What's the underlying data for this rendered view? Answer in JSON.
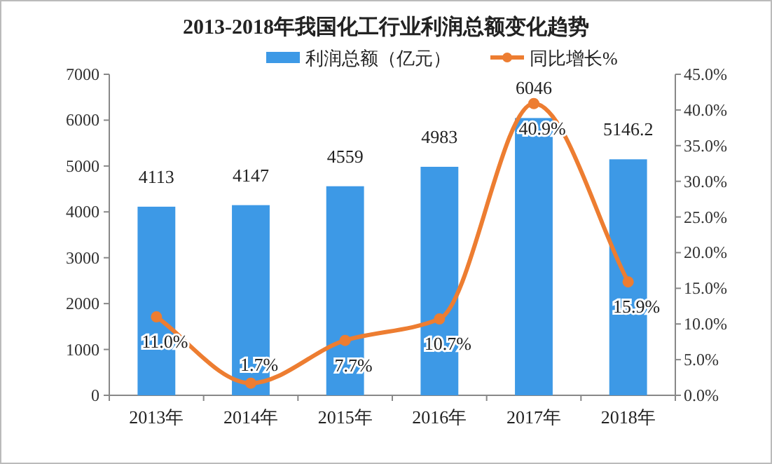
{
  "chart_data": {
    "type": "bar",
    "title": "2013-2018年我国化工行业利润总额变化趋势",
    "categories": [
      "2013年",
      "2014年",
      "2015年",
      "2016年",
      "2017年",
      "2018年"
    ],
    "series": [
      {
        "name": "利润总额（亿元）",
        "color": "#3d99e6",
        "values": [
          4113,
          4147,
          4559,
          4983,
          6046,
          5146.2
        ],
        "value_labels": [
          "4113",
          "4147",
          "4559",
          "4983",
          "6046",
          "5146.2"
        ]
      },
      {
        "name": "同比增长%",
        "type": "line",
        "axis": "y2",
        "color": "#ed7d31",
        "marker": "circle",
        "values": [
          11.0,
          1.7,
          7.7,
          10.7,
          40.9,
          15.9
        ],
        "value_labels": [
          "11.0%",
          "1.7%",
          "7.7%",
          "10.7%",
          "40.9%",
          "15.9%"
        ]
      }
    ],
    "ylim": [
      0,
      7000
    ],
    "yticks": [
      0,
      1000,
      2000,
      3000,
      4000,
      5000,
      6000,
      7000
    ],
    "y2lim": [
      0,
      45
    ],
    "y2ticks": [
      {
        "value": 0,
        "label": "0.0%"
      },
      {
        "value": 5,
        "label": "5.0%"
      },
      {
        "value": 10,
        "label": "10.0%"
      },
      {
        "value": 15,
        "label": "15.0%"
      },
      {
        "value": 20,
        "label": "20.0%"
      },
      {
        "value": 25,
        "label": "25.0%"
      },
      {
        "value": 30,
        "label": "30.0%"
      },
      {
        "value": 35,
        "label": "35.0%"
      },
      {
        "value": 40,
        "label": "40.0%"
      },
      {
        "value": 45,
        "label": "45.0%"
      }
    ],
    "grid": false,
    "legend": "top"
  }
}
